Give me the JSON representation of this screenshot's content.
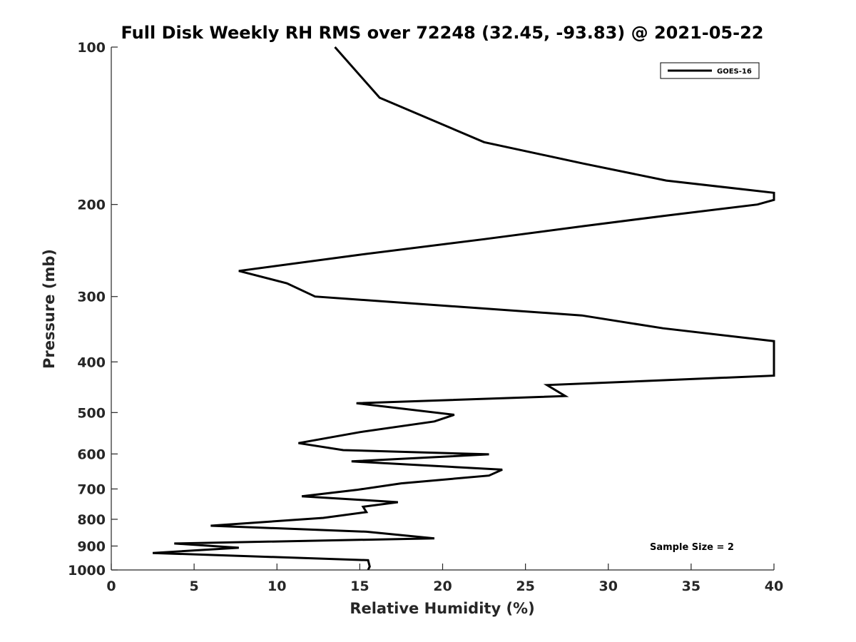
{
  "chart_data": {
    "type": "line",
    "title": "Full Disk Weekly RH RMS over 72248 (32.45, -93.83) @ 2021-05-22",
    "xlabel": "Relative Humidity (%)",
    "ylabel": "Pressure (mb)",
    "xlim": [
      0,
      40
    ],
    "ylim": [
      100,
      1000
    ],
    "yscale": "log",
    "yreversed": true,
    "xticks": [
      0,
      5,
      10,
      15,
      20,
      25,
      30,
      35,
      40
    ],
    "yticks": [
      100,
      200,
      300,
      400,
      500,
      600,
      700,
      800,
      900,
      1000
    ],
    "grid": false,
    "legend": {
      "placement": "top-right",
      "entries": [
        "GOES-16"
      ]
    },
    "annotation": "Sample Size = 2",
    "series": [
      {
        "name": "GOES-16",
        "color": "#000000",
        "points": [
          [
            13.5,
            100
          ],
          [
            16.2,
            125
          ],
          [
            22.5,
            152
          ],
          [
            28.5,
            167
          ],
          [
            33.5,
            180
          ],
          [
            40,
            190
          ],
          [
            40,
            196
          ],
          [
            39.0,
            200
          ],
          [
            33.5,
            210
          ],
          [
            28.5,
            220
          ],
          [
            22.5,
            233
          ],
          [
            14.8,
            250
          ],
          [
            7.7,
            268
          ],
          [
            10.6,
            283
          ],
          [
            12.3,
            300
          ],
          [
            28.4,
            326
          ],
          [
            33.3,
            345
          ],
          [
            40,
            365
          ],
          [
            40,
            425
          ],
          [
            26.3,
            443
          ],
          [
            27.4,
            465
          ],
          [
            14.8,
            480
          ],
          [
            20.7,
            505
          ],
          [
            19.5,
            520
          ],
          [
            15.0,
            545
          ],
          [
            11.3,
            572
          ],
          [
            14.0,
            590
          ],
          [
            22.8,
            601
          ],
          [
            14.5,
            620
          ],
          [
            23.6,
            643
          ],
          [
            22.8,
            660
          ],
          [
            17.5,
            683
          ],
          [
            14.8,
            703
          ],
          [
            11.5,
            723
          ],
          [
            17.3,
            742
          ],
          [
            15.2,
            757
          ],
          [
            15.4,
            775
          ],
          [
            12.8,
            795
          ],
          [
            6.0,
            823
          ],
          [
            15.4,
            845
          ],
          [
            19.5,
            870
          ],
          [
            3.8,
            890
          ],
          [
            7.7,
            907
          ],
          [
            2.5,
            928
          ],
          [
            15.5,
            958
          ],
          [
            15.6,
            985
          ],
          [
            15.5,
            1000
          ]
        ]
      }
    ]
  }
}
